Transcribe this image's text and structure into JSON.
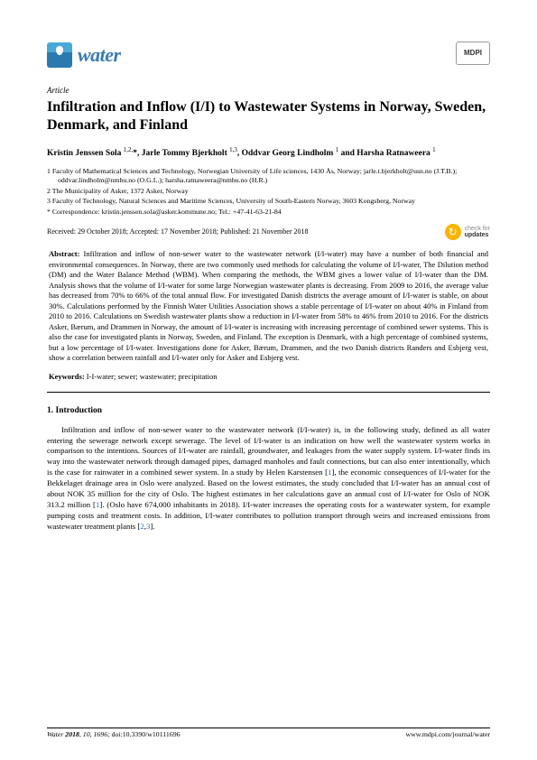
{
  "header": {
    "journal_name": "water",
    "publisher": "MDPI"
  },
  "article_type": "Article",
  "title": "Infiltration and Inflow (I/I) to Wastewater Systems in Norway, Sweden, Denmark, and Finland",
  "authors_line": "Kristin Jenssen Sola 1,2,*, Jarle Tommy Bjerkholt 1,3, Oddvar Georg Lindholm 1 and Harsha Ratnaweera 1",
  "affiliations": [
    "1   Faculty of Mathematical Sciences and Technology, Norwegian University of Life sciences, 1430 Ås, Norway; jarle.t.bjerkholt@usn.no (J.T.B.); oddvar.lindholm@nmbu.no (O.G.L.); harsha.ratnaweera@nmbu.no (H.R.)",
    "2   The Municipality of Asker, 1372 Asker, Norway",
    "3   Faculty of Technology, Natural Sciences and Maritime Sciences, University of South-Eastern Norway, 3603 Kongsberg, Norway",
    "*   Correspondence: kristin.jenssen.sola@asker.kommune.no; Tel.: +47-41-63-21-84"
  ],
  "dates_line": "Received: 29 October 2018; Accepted: 17 November 2018; Published: 21 November 2018",
  "cfu": {
    "line1": "check for",
    "line2": "updates"
  },
  "abstract": {
    "label": "Abstract:",
    "text": " Infiltration and inflow of non-sewer water to the wastewater network (I/I-water) may have a number of both financial and environmental consequences. In Norway, there are two commonly used methods for calculating the volume of I/I-water, The Dilution method (DM) and the Water Balance Method (WBM). When comparing the methods, the WBM gives a lower value of I/I-water than the DM. Analysis shows that the volume of I/I-water for some large Norwegian wastewater plants is decreasing. From 2009 to 2016, the average value has decreased from 70% to 66% of the total annual flow. For investigated Danish districts the average amount of I/I-water is stable, on about 30%. Calculations performed by the Finnish Water Utilities Association shows a stable percentage of I/I-water on about 40% in Finland from 2010 to 2016. Calculations on Swedish wastewater plants show a reduction in I/I-water from 58% to 46% from 2010 to 2016. For the districts Asker, Bærum, and Drammen in Norway, the amount of I/I-water is increasing with increasing percentage of combined sewer systems. This is also the case for investigated plants in Norway, Sweden, and Finland. The exception is Denmark, with a high percentage of combined systems, but a low percentage of I/I-water. Investigations done for Asker, Bærum, Drammen, and the two Danish districts Randers and Esbjerg vest, show a correlation between rainfall and I/I-water only for Asker and Esbjerg vest."
  },
  "keywords": {
    "label": "Keywords:",
    "text": " I-I-water; sewer; wastewater; precipitation"
  },
  "section1": {
    "heading": "1. Introduction",
    "para1_before": "Infiltration and inflow of non-sewer water to the wastewater network (I/I-water) is, in the following study, defined as all water entering the sewerage network except sewerage. The level of I/I-water is an indication on how well the wastewater system works in comparison to the intentions. Sources of I/I-water are rainfall, groundwater, and leakages from the water supply system. I/I-water finds its way into the wastewater network through damaged pipes, damaged manholes and fault connections, but can also enter intentionally, which is the case for rainwater in a combined sewer system. In a study by Helen Karstensen [",
    "cite1": "1",
    "para1_mid1": "], the economic consequences of I/I-water for the Bekkelaget drainage area in Oslo were analyzed. Based on the lowest estimates, the study concluded that I/I-water has an annual cost of about NOK 35 million for the city of Oslo. The highest estimates in her calculations gave an annual cost of I/I-water for Oslo of NOK 313.2 million [",
    "cite1b": "1",
    "para1_mid2": "]. (Oslo have 674,000 inhabitants in 2018). I/I-water increases the operating costs for a wastewater system, for example pumping costs and treatment costs. In addition, I/I-water contributes to pollution transport through weirs and increased emissions from wastewater treatment plants [",
    "cite2": "2",
    "para1_comma": ",",
    "cite3": "3",
    "para1_end": "]."
  },
  "footer": {
    "journal_ref": "Water 2018, 10, 1696; ",
    "doi": "doi:10.3390/w10111696",
    "url": "www.mdpi.com/journal/water"
  },
  "colors": {
    "journal_name": "#3b7bb0",
    "cite": "#2a6bbf",
    "cfu_icon": "#f7b500",
    "text": "#000000",
    "background": "#ffffff"
  },
  "typography": {
    "title_size_pt": 16,
    "body_size_pt": 8.8,
    "abstract_size_pt": 8.5,
    "footer_size_pt": 7.8,
    "font_family": "Palatino"
  }
}
